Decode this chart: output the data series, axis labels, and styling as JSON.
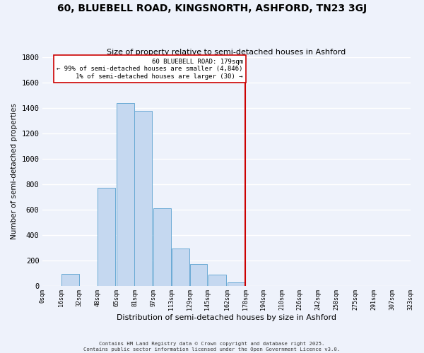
{
  "title": "60, BLUEBELL ROAD, KINGSNORTH, ASHFORD, TN23 3GJ",
  "subtitle": "Size of property relative to semi-detached houses in Ashford",
  "xlabel": "Distribution of semi-detached houses by size in Ashford",
  "ylabel": "Number of semi-detached properties",
  "bar_centers": [
    8,
    24,
    40,
    56,
    72.5,
    88.5,
    105,
    121,
    137,
    153.5,
    170,
    186,
    202,
    218,
    234,
    250,
    266.5,
    283.5,
    299,
    315
  ],
  "bar_widths": [
    16,
    16,
    16,
    16,
    16,
    16,
    16,
    16,
    16,
    16,
    16,
    16,
    16,
    16,
    16,
    16,
    16,
    16,
    16,
    16
  ],
  "bar_heights": [
    0,
    95,
    0,
    770,
    1440,
    1380,
    610,
    295,
    170,
    85,
    25,
    0,
    0,
    0,
    0,
    0,
    0,
    0,
    0,
    0
  ],
  "tick_labels": [
    "0sqm",
    "16sqm",
    "32sqm",
    "48sqm",
    "65sqm",
    "81sqm",
    "97sqm",
    "113sqm",
    "129sqm",
    "145sqm",
    "162sqm",
    "178sqm",
    "194sqm",
    "210sqm",
    "226sqm",
    "242sqm",
    "258sqm",
    "275sqm",
    "291sqm",
    "307sqm",
    "323sqm"
  ],
  "tick_positions": [
    0,
    16,
    32,
    48,
    65,
    81,
    97,
    113,
    129,
    145,
    162,
    178,
    194,
    210,
    226,
    242,
    258,
    275,
    291,
    307,
    323
  ],
  "bar_color": "#c5d8f0",
  "bar_edge_color": "#6aaad4",
  "vline_x": 178,
  "vline_color": "#cc0000",
  "annotation_title": "60 BLUEBELL ROAD: 179sqm",
  "annotation_line1": "← 99% of semi-detached houses are smaller (4,846)",
  "annotation_line2": "1% of semi-detached houses are larger (30) →",
  "annotation_box_color": "#ffffff",
  "annotation_box_edge": "#cc0000",
  "ylim": [
    0,
    1800
  ],
  "xlim": [
    0,
    323
  ],
  "yticks": [
    0,
    200,
    400,
    600,
    800,
    1000,
    1200,
    1400,
    1600,
    1800
  ],
  "footer1": "Contains HM Land Registry data © Crown copyright and database right 2025.",
  "footer2": "Contains public sector information licensed under the Open Government Licence v3.0.",
  "bg_color": "#eef2fb",
  "grid_color": "#ffffff"
}
